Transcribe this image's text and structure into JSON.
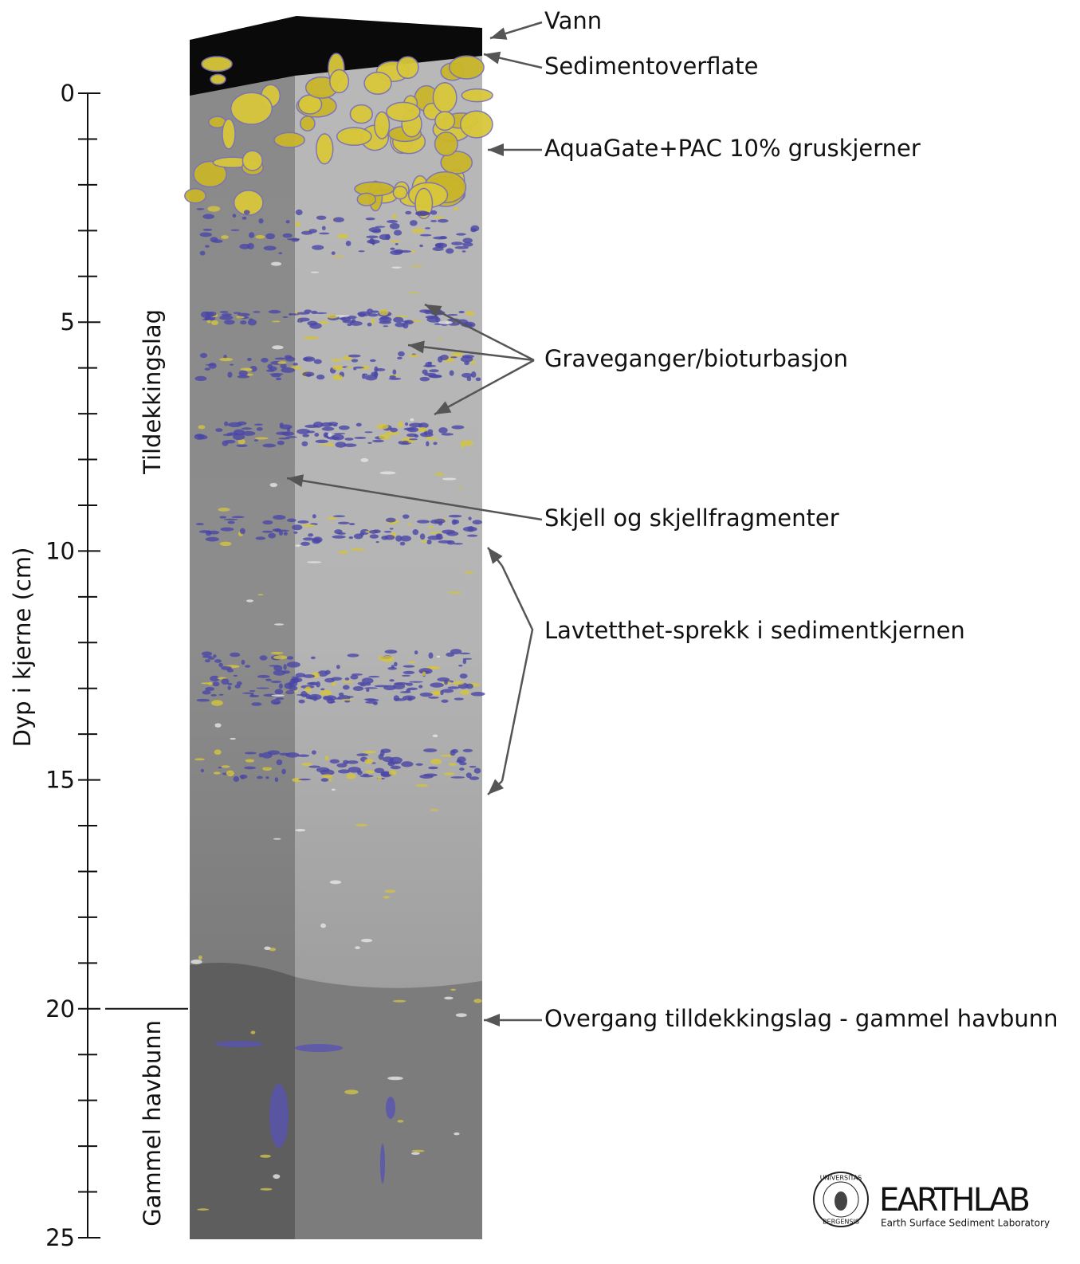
{
  "axis": {
    "label": "Dyp i kjerne (cm)",
    "range": [
      0,
      25
    ],
    "ticks": [
      0,
      5,
      10,
      15,
      20,
      25
    ],
    "minor_ticks": [
      1,
      2,
      3,
      4,
      6,
      7,
      8,
      9,
      11,
      12,
      13,
      14,
      16,
      17,
      18,
      19,
      21,
      22,
      23,
      24
    ]
  },
  "layers": [
    {
      "label": "Tildekkingslag",
      "top": 0,
      "bottom": 20
    },
    {
      "label": "Gammel havbunn",
      "top": 20,
      "bottom": 25
    }
  ],
  "annotations": [
    "Vann",
    "Sedimentoverflate",
    "AquaGate+PAC 10% gruskjerner",
    "Graveganger/bioturbasjon",
    "Skjell og skjellfragmenter",
    "Lavtetthet-sprekk i sedimentkjernen",
    "Overgang tilldekkingslag - gammel havbunn"
  ],
  "logo": {
    "seal_top": "UNIVERSITAS",
    "seal_bottom": "BERGENSIS",
    "name": "EARTHLAB",
    "subtitle": "Earth Surface Sediment Laboratory"
  }
}
